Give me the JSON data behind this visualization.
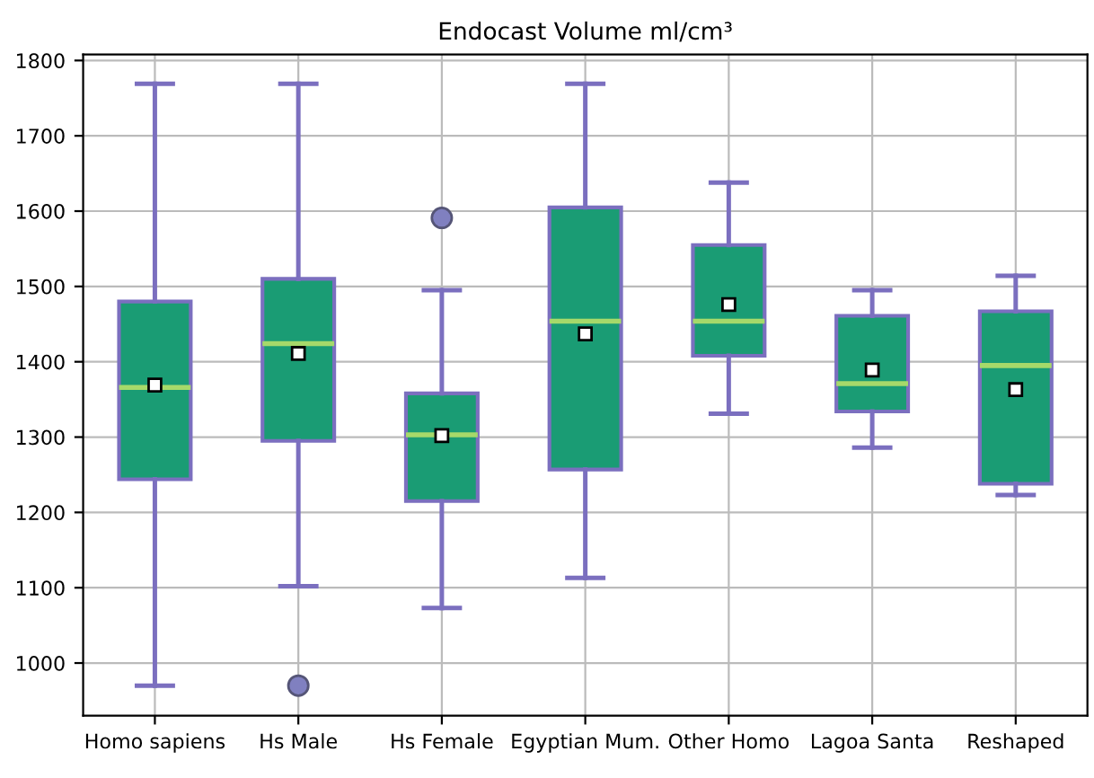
{
  "chart_data": {
    "type": "box",
    "title": "Endocast Volume ml/cm³",
    "categories": [
      "Homo sapiens",
      "Hs Male",
      "Hs Female",
      "Egyptian Mum.",
      "Other Homo",
      "Lagoa Santa",
      "Reshaped"
    ],
    "boxes": [
      {
        "low": 970,
        "q1": 1244,
        "median": 1366,
        "q3": 1480,
        "high": 1769,
        "mean": 1369
      },
      {
        "low": 1102,
        "q1": 1295,
        "median": 1424,
        "q3": 1510,
        "high": 1769,
        "mean": 1411,
        "outliers": [
          970
        ]
      },
      {
        "low": 1073,
        "q1": 1215,
        "median": 1303,
        "q3": 1358,
        "high": 1495,
        "mean": 1302,
        "outliers": [
          1591
        ]
      },
      {
        "low": 1113,
        "q1": 1257,
        "median": 1454,
        "q3": 1605,
        "high": 1769,
        "mean": 1437
      },
      {
        "low": 1331,
        "q1": 1408,
        "median": 1454,
        "q3": 1555,
        "high": 1638,
        "mean": 1476
      },
      {
        "low": 1286,
        "q1": 1334,
        "median": 1371,
        "q3": 1461,
        "high": 1495,
        "mean": 1389
      },
      {
        "low": 1223,
        "q1": 1238,
        "median": 1395,
        "q3": 1467,
        "high": 1514,
        "mean": 1363
      }
    ],
    "color": "#1a9c74",
    "ylim": [
      930,
      1808
    ],
    "yticks": [
      1000,
      1100,
      1200,
      1300,
      1400,
      1500,
      1600,
      1700,
      1800
    ],
    "grid": true
  }
}
